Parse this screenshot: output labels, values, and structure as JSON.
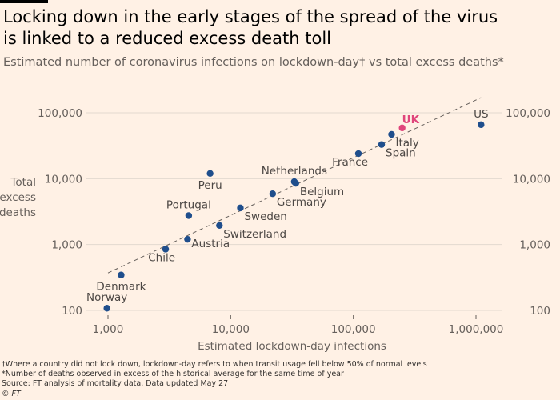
{
  "header": {
    "title_line1": "Locking down in the early stages of the spread of the virus",
    "title_line2": "is linked to a reduced excess death toll",
    "subtitle": "Estimated number of coronavirus infections on lockdown-day† vs total excess deaths*"
  },
  "footnotes": {
    "note1": "†Where a country did not lock down, lockdown-day refers to when transit usage fell below 50% of normal levels",
    "note2": "*Number of deaths observed in excess of the historical average for the same time of year",
    "source": "Source: FT analysis of mortality data. Data updated May 27",
    "credit": "© FT"
  },
  "colors": {
    "background": "#fff1e5",
    "point": "#1f4e8c",
    "highlight": "#e0457b",
    "gridline": "#e3d9cf",
    "trendline": "#66605c"
  },
  "chart_data": {
    "type": "scatter",
    "xscale": "log",
    "yscale": "log",
    "xlabel": "Estimated lockdown-day infections",
    "ylabel_lines": [
      "Total",
      "excess",
      "deaths"
    ],
    "xlim": [
      700,
      1600000
    ],
    "ylim": [
      80,
      200000
    ],
    "xticks": [
      {
        "value": 1000,
        "label": "1,000"
      },
      {
        "value": 10000,
        "label": "10,000"
      },
      {
        "value": 100000,
        "label": "100,000"
      },
      {
        "value": 1000000,
        "label": "1,000,000"
      }
    ],
    "yticks": [
      {
        "value": 100,
        "label": "100"
      },
      {
        "value": 1000,
        "label": "1,000"
      },
      {
        "value": 10000,
        "label": "10,000"
      },
      {
        "value": 100000,
        "label": "100,000"
      }
    ],
    "grid": true,
    "trendline": {
      "x": [
        1000,
        1100000
      ],
      "y": [
        370,
        170000
      ]
    },
    "points": [
      {
        "name": "Norway",
        "x": 980,
        "y": 108,
        "label_pos": "above"
      },
      {
        "name": "Denmark",
        "x": 1280,
        "y": 345,
        "label_pos": "below"
      },
      {
        "name": "Chile",
        "x": 2950,
        "y": 850,
        "label_pos": "below-left"
      },
      {
        "name": "Austria",
        "x": 4450,
        "y": 1200,
        "label_pos": "right"
      },
      {
        "name": "Portugal",
        "x": 4550,
        "y": 2750,
        "label_pos": "above"
      },
      {
        "name": "Switzerland",
        "x": 8100,
        "y": 1950,
        "label_pos": "below-right"
      },
      {
        "name": "Sweden",
        "x": 12000,
        "y": 3600,
        "label_pos": "below-right"
      },
      {
        "name": "Peru",
        "x": 6800,
        "y": 12000,
        "label_pos": "below"
      },
      {
        "name": "Germany",
        "x": 22000,
        "y": 5900,
        "label_pos": "below-right"
      },
      {
        "name": "Netherlands",
        "x": 33000,
        "y": 9000,
        "label_pos": "above"
      },
      {
        "name": "Belgium",
        "x": 34000,
        "y": 8500,
        "label_pos": "below-right"
      },
      {
        "name": "France",
        "x": 110000,
        "y": 24000,
        "label_pos": "below-left"
      },
      {
        "name": "Spain",
        "x": 170000,
        "y": 33000,
        "label_pos": "below-right"
      },
      {
        "name": "Italy",
        "x": 205000,
        "y": 47000,
        "label_pos": "below-right"
      },
      {
        "name": "UK",
        "x": 250000,
        "y": 59000,
        "label_pos": "above-right",
        "highlight": true
      },
      {
        "name": "US",
        "x": 1100000,
        "y": 66000,
        "label_pos": "above"
      }
    ]
  }
}
